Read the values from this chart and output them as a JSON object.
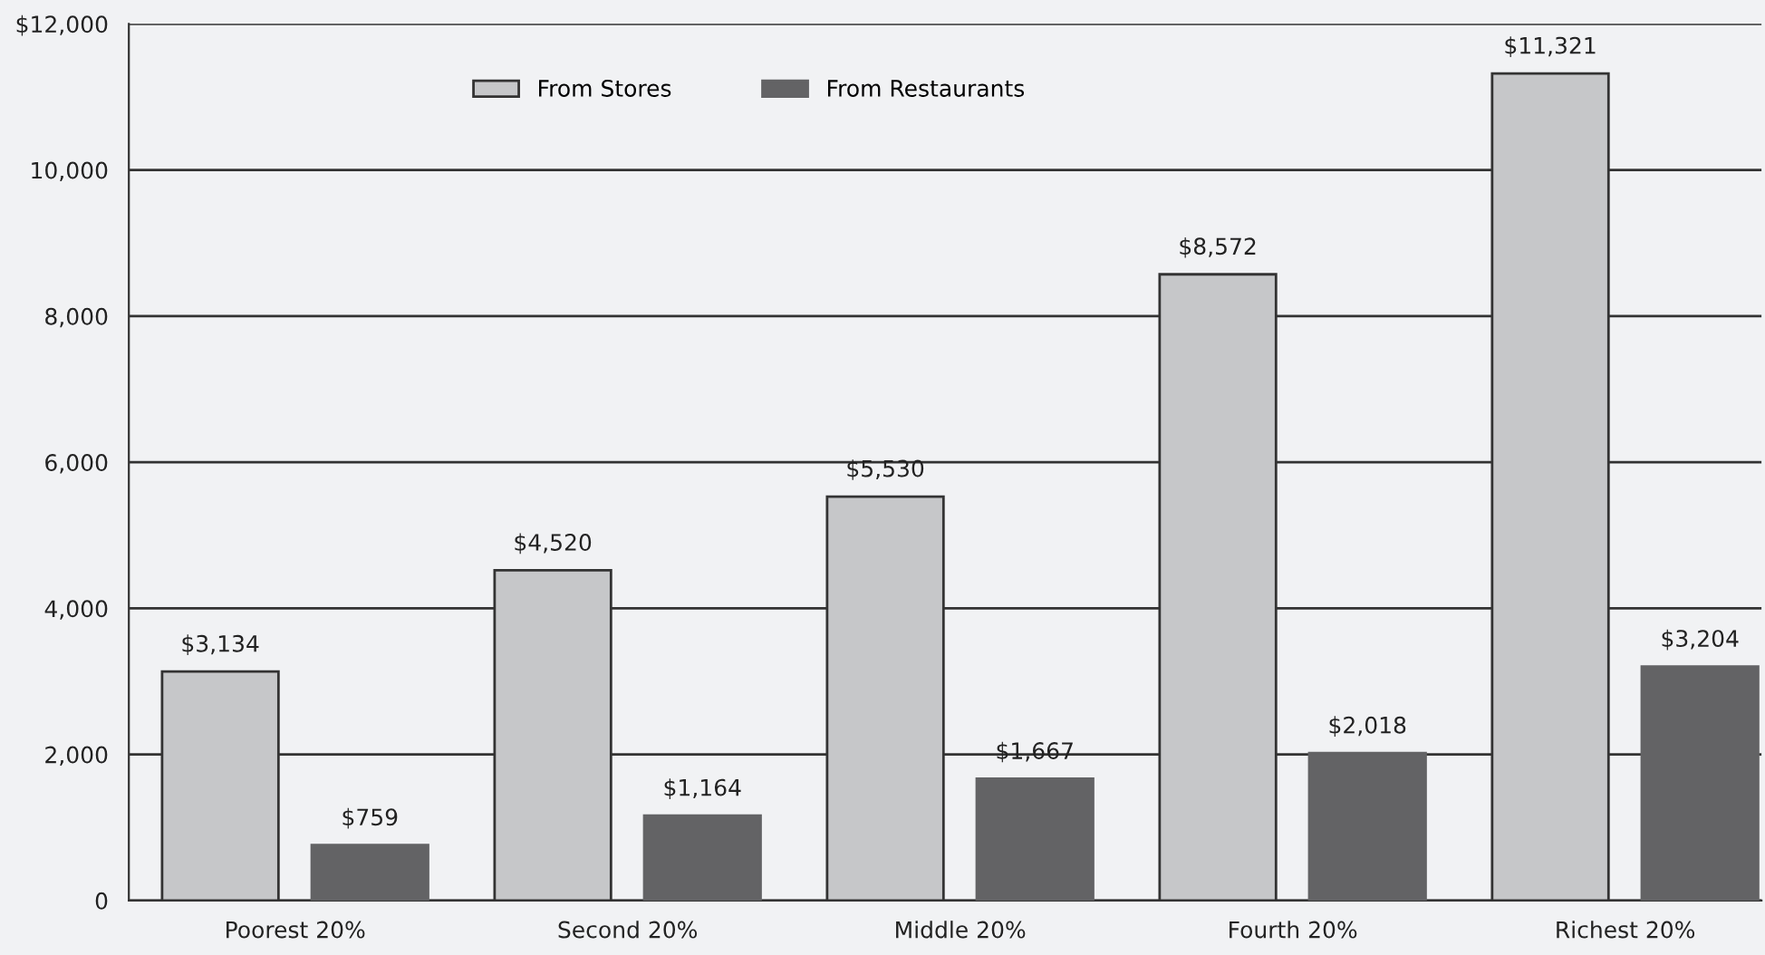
{
  "chart_data": {
    "type": "bar",
    "categories": [
      "Poorest 20%",
      "Second 20%",
      "Middle 20%",
      "Fourth 20%",
      "Richest 20%"
    ],
    "series": [
      {
        "name": "From Stores",
        "color": "#c6c7c9",
        "values": [
          3134,
          4520,
          5530,
          8572,
          11321
        ],
        "value_labels": [
          "$3,134",
          "$4,520",
          "$5,530",
          "$8,572",
          "$11,321"
        ]
      },
      {
        "name": "From Restaurants",
        "color": "#636365",
        "values": [
          759,
          1164,
          1667,
          2018,
          3204
        ],
        "value_labels": [
          "$759",
          "$1,164",
          "$1,667",
          "$2,018",
          "$3,204"
        ]
      }
    ],
    "ylim": [
      0,
      12000
    ],
    "yticks": [
      0,
      {
        "value": 2000,
        "label": "2,000"
      },
      {
        "value": 4000,
        "label": "4,000"
      },
      {
        "value": 6000,
        "label": "6,000"
      },
      {
        "value": 8000,
        "label": "8,000"
      },
      {
        "value": 10000,
        "label": "10,000"
      },
      {
        "value": 12000,
        "label": "$12,000"
      }
    ],
    "grid": "y",
    "legend": "top"
  }
}
